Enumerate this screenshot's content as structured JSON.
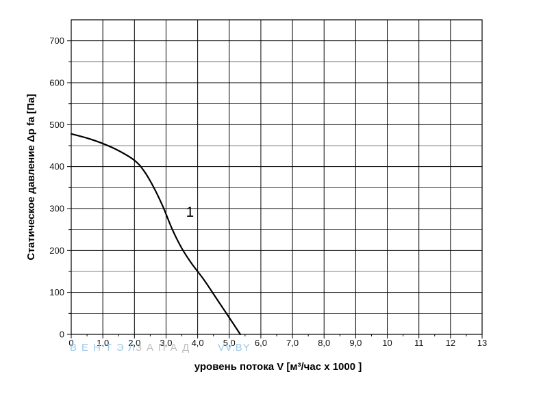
{
  "chart_data": {
    "type": "line",
    "xlabel": "уровень потока  V [м³/час x 1000 ]",
    "ylabel": "Статическое давление  Δp fa [Па]",
    "xlim": [
      0,
      13
    ],
    "ylim": [
      0,
      750
    ],
    "grid": true,
    "x_minor_grid_step": 0.5,
    "y_minor_grid_step": 50,
    "x_tick_labels": [
      "0",
      "1,0",
      "2,0",
      "3,0",
      "4,0",
      "5,0",
      "6,0",
      "7,0",
      "8,0",
      "9,0",
      "10",
      "11",
      "12",
      "13"
    ],
    "y_tick_labels": [
      "0",
      "100",
      "200",
      "300",
      "400",
      "500",
      "600",
      "700"
    ],
    "series": [
      {
        "label": "1",
        "x": [
          0,
          0.5,
          1.0,
          1.5,
          2.0,
          2.3,
          2.6,
          2.9,
          3.2,
          3.5,
          3.8,
          4.2,
          4.6,
          5.0,
          5.35
        ],
        "y": [
          478,
          468,
          455,
          438,
          415,
          390,
          352,
          305,
          250,
          205,
          170,
          130,
          85,
          40,
          0
        ]
      }
    ],
    "watermark": [
      "ВЕНТЭЛ",
      "ЗАПАД",
      "VV.BY"
    ]
  },
  "colors": {
    "curve": "#000000",
    "grid": "#000000",
    "watermark_1": "#9ec9e6",
    "watermark_2": "#bdbdbd",
    "watermark_3": "#9ec9e6"
  }
}
